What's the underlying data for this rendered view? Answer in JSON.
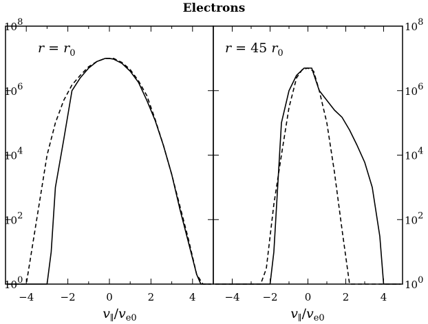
{
  "chart_data": {
    "type": "line",
    "title": "Electrons",
    "xlim": [
      -5,
      5
    ],
    "ylog": true,
    "ylim": [
      1,
      100000000
    ],
    "x_ticks": [
      -4,
      -2,
      0,
      2,
      4
    ],
    "x_tick_labels": [
      "−4",
      "−2",
      "0",
      "2",
      "4"
    ],
    "y_ticks": [
      1,
      100,
      10000,
      1000000,
      100000000
    ],
    "y_tick_labels": [
      {
        "base": "10",
        "exp": "0"
      },
      {
        "base": "10",
        "exp": "2"
      },
      {
        "base": "10",
        "exp": "4"
      },
      {
        "base": "10",
        "exp": "6"
      },
      {
        "base": "10",
        "exp": "8"
      }
    ],
    "xlabel": {
      "v": "v",
      "par": "∥",
      "slash": "/",
      "v2": "v",
      "sub": "e0"
    },
    "panels": [
      {
        "annotation": {
          "lhs": "r",
          "eq": " = ",
          "rhs": "r",
          "sub": "0"
        },
        "series": [
          {
            "style": "solid",
            "x": [
              -4.9,
              -3.0,
              -2.8,
              -2.6,
              -2.2,
              -1.8,
              -1.4,
              -1.0,
              -0.6,
              -0.2,
              0.0,
              0.2,
              0.6,
              1.0,
              1.4,
              1.8,
              2.2,
              2.6,
              3.0,
              3.4,
              3.8,
              4.2,
              4.4,
              4.9
            ],
            "y": [
              1,
              1,
              10,
              1000,
              30000,
              1000000,
              2500000,
              5000000,
              8000000,
              10000000,
              10000000,
              9500000,
              7000000,
              4000000,
              1800000,
              500000,
              120000,
              20000,
              2500,
              200,
              20,
              2,
              1,
              1
            ]
          },
          {
            "style": "dashed",
            "x": [
              -4.9,
              -4.0,
              -3.5,
              -3.0,
              -2.6,
              -2.2,
              -1.8,
              -1.4,
              -1.0,
              -0.6,
              -0.2,
              0.0,
              0.2,
              0.6,
              1.0,
              1.4,
              1.8,
              2.2,
              2.6,
              3.0,
              3.4,
              3.8,
              4.2,
              4.5,
              4.9
            ],
            "y": [
              1,
              1,
              100,
              10000,
              100000,
              500000,
              1500000,
              3000000,
              5500000,
              8000000,
              10000000,
              10000000,
              10000000,
              7500000,
              4500000,
              2000000,
              700000,
              130000,
              20000,
              2500,
              250,
              25,
              2,
              1,
              1
            ]
          }
        ]
      },
      {
        "annotation": {
          "lhs": "r",
          "eq": " = 45 ",
          "rhs": "r",
          "sub": "0"
        },
        "series": [
          {
            "style": "solid",
            "x": [
              -4.9,
              -2.0,
              -1.8,
              -1.4,
              -1.0,
              -0.6,
              -0.2,
              0.2,
              0.6,
              1.0,
              1.4,
              1.8,
              2.2,
              2.6,
              3.0,
              3.4,
              3.8,
              4.0,
              4.9
            ],
            "y": [
              1,
              1,
              10,
              100000,
              1000000,
              3000000,
              5000000,
              5000000,
              1000000,
              500000,
              250000,
              150000,
              60000,
              20000,
              6000,
              1000,
              30,
              1,
              1
            ]
          },
          {
            "style": "dashed",
            "x": [
              -4.9,
              -2.5,
              -2.2,
              -1.8,
              -1.4,
              -1.0,
              -0.6,
              -0.3,
              0.0,
              0.3,
              0.6,
              1.0,
              1.4,
              1.8,
              2.2,
              2.5,
              4.9
            ],
            "y": [
              1,
              1,
              3,
              300,
              10000,
              300000,
              2500000,
              4500000,
              5000000,
              4000000,
              1000000,
              100000,
              3000,
              50,
              1,
              1,
              1
            ]
          }
        ]
      }
    ]
  }
}
